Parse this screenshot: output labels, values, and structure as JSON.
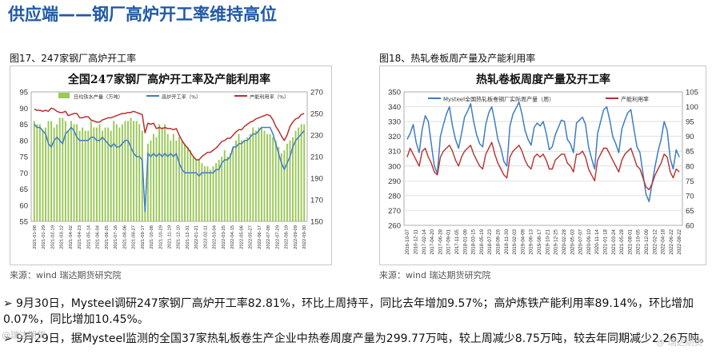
{
  "page_title": "供应端——钢厂高炉开工率维持高位",
  "left_figure": {
    "caption": "图17、247家钢厂高炉开工率",
    "source": "来源：wind   瑞达期货研究院"
  },
  "right_figure": {
    "caption": "图18、热轧卷板周产量及产能利用率",
    "source": "来源：wind   瑞达期货研究院"
  },
  "bullets": [
    "9月30日，Mysteel调研247家钢厂高炉开工率82.81%，环比上周持平，同比去年增加9.57%；高炉炼铁产能利用率89.14%，环比增加0.07%，同比增加10.45%。",
    "9月29日，据Mysteel监测的全国37家热轧板卷生产企业中热卷周度产量为299.77万吨，较上周减少8.75万吨，较去年同期减少2.26万吨。"
  ],
  "watermark": "@瑞达期货",
  "watermark2": "@ 瑞达期货",
  "colors": {
    "title": "#1f5aa6",
    "bar_green": "#9bc85a",
    "line_blue": "#3f7dc2",
    "line_red": "#b8302f"
  },
  "chart_data": [
    {
      "type": "bar",
      "title": "全国247家钢厂高炉开工率及产能利用率",
      "legend": [
        "日均铁水产量（万吨）",
        "高炉开工率（%）",
        "产能利用率（%）"
      ],
      "y_left": {
        "min": 55,
        "max": 95,
        "ticks": [
          55,
          60,
          65,
          70,
          75,
          80,
          85,
          90,
          95
        ]
      },
      "y_right": {
        "min": 150,
        "max": 270,
        "ticks": [
          150,
          170,
          190,
          210,
          230,
          250,
          270
        ]
      },
      "x_labels": [
        "2021-01-08",
        "2021-01-29",
        "2021-02-19",
        "2021-03-12",
        "2021-04-02",
        "2021-04-23",
        "2021-05-14",
        "2021-06-04",
        "2021-06-25",
        "2021-07-16",
        "2021-08-06",
        "2021-08-27",
        "2021-09-17",
        "2021-10-08",
        "2021-10-29",
        "2021-11-19",
        "2021-12-10",
        "2021-12-31",
        "2022-01-21",
        "2022-02-11",
        "2022-03-04",
        "2022-03-25",
        "2022-04-15",
        "2022-05-06",
        "2022-05-27",
        "2022-06-17",
        "2022-07-08",
        "2022-07-29",
        "2022-08-19",
        "2022-09-09",
        "2022-09-30"
      ],
      "series": [
        {
          "name": "日均铁水产量（万吨）",
          "kind": "bar",
          "axis": "left",
          "values": [
            86,
            85,
            85,
            83,
            84,
            86,
            86,
            84,
            85,
            87,
            87,
            86,
            83,
            86,
            85,
            85,
            83,
            84,
            83,
            83,
            86,
            84,
            84,
            85,
            83,
            84,
            84,
            83,
            86,
            85,
            84,
            85,
            86,
            86,
            87,
            86,
            86,
            85,
            83,
            59,
            79,
            80,
            82,
            81,
            85,
            84,
            85,
            82,
            80,
            82,
            80,
            81,
            80,
            79,
            78,
            77,
            75,
            74,
            74,
            73,
            72,
            72,
            71,
            72,
            73,
            74,
            75,
            77,
            75,
            76,
            78,
            80,
            82,
            80,
            80,
            81,
            82,
            84,
            83,
            84,
            84,
            83,
            82,
            82,
            81,
            80,
            78,
            76,
            77,
            79,
            80,
            81,
            83,
            84,
            85,
            85
          ]
        },
        {
          "name": "高炉开工率（%）",
          "kind": "line",
          "axis": "left",
          "values": [
            85,
            84,
            84,
            83,
            82,
            79,
            78,
            80,
            81,
            80,
            79,
            82,
            83,
            84,
            83,
            81,
            80,
            80,
            80,
            80,
            81,
            81,
            80,
            80,
            81,
            80,
            79,
            78,
            79,
            78,
            78,
            79,
            80,
            80,
            78,
            76,
            75,
            75,
            74,
            58,
            76,
            75,
            76,
            75,
            76,
            75,
            76,
            75,
            76,
            75,
            76,
            73,
            71,
            70,
            70,
            70,
            70,
            70,
            69,
            70,
            70,
            70,
            70,
            70,
            71,
            71,
            73,
            74,
            74,
            75,
            78,
            78,
            79,
            79,
            80,
            80,
            81,
            82,
            82,
            83,
            84,
            84,
            84,
            84,
            82,
            79,
            76,
            73,
            71,
            73,
            75,
            78,
            80,
            81,
            82,
            83
          ]
        },
        {
          "name": "产能利用率（%）",
          "kind": "line",
          "axis": "right",
          "values": [
            254,
            253,
            253,
            252,
            253,
            252,
            255,
            254,
            252,
            251,
            251,
            252,
            248,
            249,
            250,
            250,
            246,
            246,
            247,
            247,
            244,
            243,
            242,
            242,
            244,
            245,
            246,
            246,
            247,
            248,
            249,
            250,
            250,
            251,
            251,
            252,
            251,
            250,
            249,
            232,
            241,
            240,
            241,
            236,
            237,
            236,
            237,
            236,
            236,
            235,
            236,
            230,
            225,
            221,
            218,
            214,
            210,
            207,
            207,
            210,
            212,
            214,
            214,
            216,
            218,
            221,
            224,
            225,
            227,
            227,
            230,
            233,
            235,
            235,
            238,
            240,
            242,
            243,
            245,
            246,
            247,
            248,
            249,
            248,
            244,
            238,
            234,
            229,
            225,
            230,
            238,
            242,
            245,
            246,
            249,
            250
          ]
        }
      ]
    },
    {
      "type": "line",
      "title": "热轧卷板周度产量及开工率",
      "legend": [
        "Mysteel全国热轧板卷钢厂实际周产量（周）",
        "产能利用率"
      ],
      "y_left": {
        "min": 260,
        "max": 350,
        "ticks": [
          260,
          270,
          280,
          290,
          300,
          310,
          320,
          330,
          340,
          350
        ]
      },
      "y_right": {
        "min": 60,
        "max": 105,
        "ticks": [
          60,
          65,
          70,
          75,
          80,
          85,
          90,
          95,
          100,
          105
        ]
      },
      "x_labels": [
        "2016-10-07",
        "2016-12-11",
        "2017-02-14",
        "2017-04-20",
        "2017-06-28",
        "2017-09-01",
        "2017-11-05",
        "2018-01-09",
        "2018-03-15",
        "2018-05-19",
        "2018-07-23",
        "2018-09-26",
        "2018-11-30",
        "2019-02-03",
        "2019-04-09",
        "2019-06-13",
        "2019-08-17",
        "2019-10-21",
        "2019-12-25",
        "2020-02-28",
        "2020-05-03",
        "2020-07-07",
        "2020-09-10",
        "2020-11-14",
        "2021-01-18",
        "2021-03-24",
        "2021-05-28",
        "2021-08-01",
        "2021-10-05",
        "2021-12-09",
        "2022-02-12",
        "2022-04-18",
        "2022-06-22",
        "2022-08-22"
      ],
      "series": [
        {
          "name": "Mysteel全国热轧板卷钢厂实际周产量（周）",
          "axis": "left",
          "values": [
            318,
            322,
            328,
            316,
            309,
            325,
            334,
            330,
            315,
            300,
            295,
            320,
            328,
            335,
            340,
            327,
            318,
            312,
            322,
            333,
            337,
            342,
            330,
            321,
            315,
            313,
            328,
            336,
            340,
            330,
            318,
            312,
            303,
            300,
            327,
            335,
            339,
            343,
            335,
            324,
            318,
            314,
            326,
            329,
            327,
            330,
            322,
            311,
            313,
            321,
            326,
            331,
            330,
            318,
            315,
            309,
            329,
            331,
            333,
            328,
            313,
            305,
            298,
            322,
            330,
            338,
            340,
            331,
            320,
            315,
            309,
            325,
            331,
            336,
            338,
            325,
            313,
            309,
            295,
            281,
            276,
            288,
            300,
            310,
            318,
            330,
            324,
            305,
            298,
            311,
            306
          ]
        },
        {
          "name": "产能利用率",
          "axis": "right",
          "values": [
            83,
            86,
            84,
            82,
            80,
            85,
            86,
            83,
            81,
            78,
            77,
            83,
            85,
            86,
            87,
            85,
            82,
            80,
            83,
            85,
            86,
            87,
            84,
            82,
            80,
            79,
            84,
            86,
            88,
            84,
            81,
            79,
            77,
            76,
            83,
            85,
            86,
            87,
            85,
            82,
            80,
            79,
            83,
            84,
            83,
            84,
            82,
            79,
            79,
            82,
            83,
            84,
            84,
            81,
            80,
            78,
            84,
            84,
            85,
            83,
            79,
            77,
            75,
            82,
            84,
            86,
            86,
            84,
            82,
            80,
            78,
            82,
            84,
            85,
            86,
            83,
            80,
            79,
            76,
            73,
            72,
            74,
            77,
            79,
            81,
            84,
            83,
            78,
            76,
            79,
            78
          ]
        }
      ]
    }
  ]
}
